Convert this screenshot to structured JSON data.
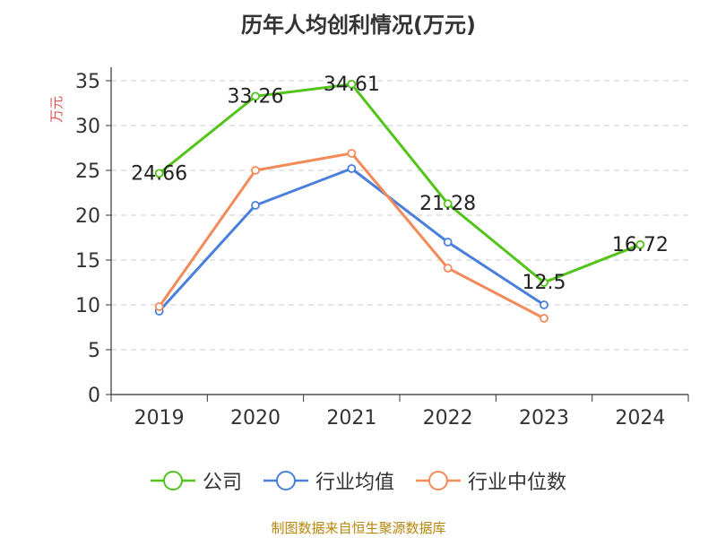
{
  "chart_data": {
    "type": "line",
    "title": "历年人均创利情况(万元)",
    "ylabel": "万元",
    "xlabel": "",
    "categories": [
      "2019",
      "2020",
      "2021",
      "2022",
      "2023",
      "2024"
    ],
    "ylim": [
      0,
      35
    ],
    "yticks": [
      0,
      5,
      10,
      15,
      20,
      25,
      30,
      35
    ],
    "grid": true,
    "legend_position": "bottom",
    "series": [
      {
        "name": "公司",
        "color": "#52c41a",
        "values": [
          24.66,
          33.26,
          34.61,
          21.28,
          12.5,
          16.72
        ],
        "labels": [
          "24.66",
          "33.26",
          "34.61",
          "21.28",
          "12.5",
          "16.72"
        ]
      },
      {
        "name": "行业均值",
        "color": "#4a7fdc",
        "values": [
          9.3,
          21.1,
          25.2,
          17.0,
          10.0,
          null
        ]
      },
      {
        "name": "行业中位数",
        "color": "#f28a5a",
        "values": [
          9.8,
          25.0,
          26.9,
          14.1,
          8.5,
          null
        ]
      }
    ]
  },
  "source": "制图数据来自恒生聚源数据库"
}
